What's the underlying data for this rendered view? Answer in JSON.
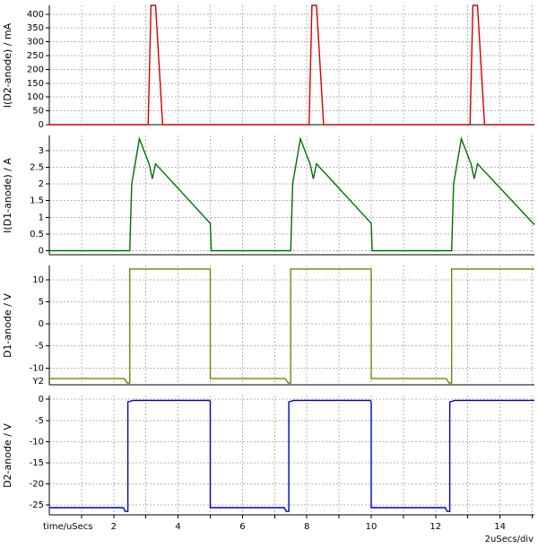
{
  "figure": {
    "bg": "#ffffff",
    "grid_color": "#b4b4b4",
    "axis_color": "#000000",
    "x": {
      "min": 0,
      "max": 15.07,
      "grid_step": 1,
      "tick_values": [
        2,
        4,
        6,
        8,
        10,
        12,
        14
      ],
      "tick_labels": [
        "2",
        "4",
        "6",
        "8",
        "10",
        "12",
        "14"
      ],
      "axis_label": "time/uSecs",
      "scale_label": "2uSecs/div"
    }
  },
  "chart_data": [
    {
      "type": "line",
      "name": "i-d2-anode-current",
      "ylabel": "I(D2-anode) / mA",
      "color": "#d40000",
      "ylim": [
        0,
        432
      ],
      "ytick_values": [
        0,
        50,
        100,
        150,
        200,
        250,
        300,
        350,
        400
      ],
      "ytick_labels": [
        "0",
        "50",
        "100",
        "150",
        "200",
        "250",
        "300",
        "350",
        "400"
      ],
      "corner_label": "",
      "points": [
        [
          0,
          0
        ],
        [
          3.07,
          0
        ],
        [
          3.16,
          445
        ],
        [
          3.3,
          445
        ],
        [
          3.52,
          0
        ],
        [
          8.07,
          0
        ],
        [
          8.16,
          445
        ],
        [
          8.3,
          445
        ],
        [
          8.52,
          0
        ],
        [
          13.07,
          0
        ],
        [
          13.16,
          445
        ],
        [
          13.3,
          445
        ],
        [
          13.52,
          0
        ],
        [
          15.07,
          0
        ]
      ]
    },
    {
      "type": "line",
      "name": "i-d1-anode-current",
      "ylabel": "I(D1-anode) / A",
      "color": "#007000",
      "ylim": [
        -0.12,
        3.45
      ],
      "ytick_values": [
        0,
        0.5,
        1,
        1.5,
        2,
        2.5,
        3
      ],
      "ytick_labels": [
        "0",
        "0.5",
        "1",
        "1.5",
        "2",
        "2.5",
        "3"
      ],
      "corner_label": "",
      "points": [
        [
          0,
          0
        ],
        [
          2.5,
          0
        ],
        [
          2.56,
          2.0
        ],
        [
          2.8,
          3.35
        ],
        [
          3.1,
          2.6
        ],
        [
          3.2,
          2.15
        ],
        [
          3.3,
          2.6
        ],
        [
          5.0,
          0.82
        ],
        [
          5.03,
          0
        ],
        [
          7.5,
          0
        ],
        [
          7.56,
          2.0
        ],
        [
          7.8,
          3.35
        ],
        [
          8.1,
          2.6
        ],
        [
          8.2,
          2.15
        ],
        [
          8.3,
          2.6
        ],
        [
          10.0,
          0.82
        ],
        [
          10.03,
          0
        ],
        [
          12.5,
          0
        ],
        [
          12.56,
          2.0
        ],
        [
          12.8,
          3.35
        ],
        [
          13.1,
          2.6
        ],
        [
          13.2,
          2.15
        ],
        [
          13.3,
          2.6
        ],
        [
          15.07,
          0.78
        ]
      ]
    },
    {
      "type": "line",
      "name": "d1-anode-voltage",
      "ylabel": "D1-anode / V",
      "color": "#7f7f00",
      "ylim": [
        -13.8,
        13.2
      ],
      "ytick_values": [
        -10,
        -5,
        0,
        5,
        10
      ],
      "ytick_labels": [
        "-10",
        "-5",
        "0",
        "5",
        "10"
      ],
      "corner_label": "Y2",
      "points": [
        [
          0,
          -12.4
        ],
        [
          2.33,
          -12.4
        ],
        [
          2.42,
          -13.4
        ],
        [
          2.5,
          -13.4
        ],
        [
          2.5,
          12.4
        ],
        [
          5.0,
          12.4
        ],
        [
          5.0,
          -12.4
        ],
        [
          7.33,
          -12.4
        ],
        [
          7.42,
          -13.4
        ],
        [
          7.5,
          -13.4
        ],
        [
          7.5,
          12.4
        ],
        [
          10.0,
          12.4
        ],
        [
          10.0,
          -12.4
        ],
        [
          12.33,
          -12.4
        ],
        [
          12.42,
          -13.4
        ],
        [
          12.5,
          -13.4
        ],
        [
          12.5,
          12.4
        ],
        [
          15.07,
          12.4
        ]
      ]
    },
    {
      "type": "line",
      "name": "d2-anode-voltage",
      "ylabel": "D2-anode / V",
      "color": "#0000c8",
      "ylim": [
        -27.3,
        0.9
      ],
      "ytick_values": [
        0,
        -5,
        -10,
        -15,
        -20,
        -25
      ],
      "ytick_labels": [
        "0",
        "-5",
        "-10",
        "-15",
        "-20",
        "-25"
      ],
      "corner_label": "",
      "points": [
        [
          0,
          -25.6
        ],
        [
          2.3,
          -25.6
        ],
        [
          2.36,
          -26.5
        ],
        [
          2.44,
          -26.5
        ],
        [
          2.44,
          -0.6
        ],
        [
          2.6,
          -0.25
        ],
        [
          4.97,
          -0.25
        ],
        [
          5.0,
          -0.6
        ],
        [
          5.0,
          -25.6
        ],
        [
          7.3,
          -25.6
        ],
        [
          7.36,
          -26.5
        ],
        [
          7.44,
          -26.5
        ],
        [
          7.44,
          -0.6
        ],
        [
          7.6,
          -0.25
        ],
        [
          9.97,
          -0.25
        ],
        [
          10.0,
          -0.6
        ],
        [
          10.0,
          -25.6
        ],
        [
          12.3,
          -25.6
        ],
        [
          12.36,
          -26.5
        ],
        [
          12.44,
          -26.5
        ],
        [
          12.44,
          -0.6
        ],
        [
          12.6,
          -0.25
        ],
        [
          15.07,
          -0.25
        ]
      ]
    }
  ]
}
